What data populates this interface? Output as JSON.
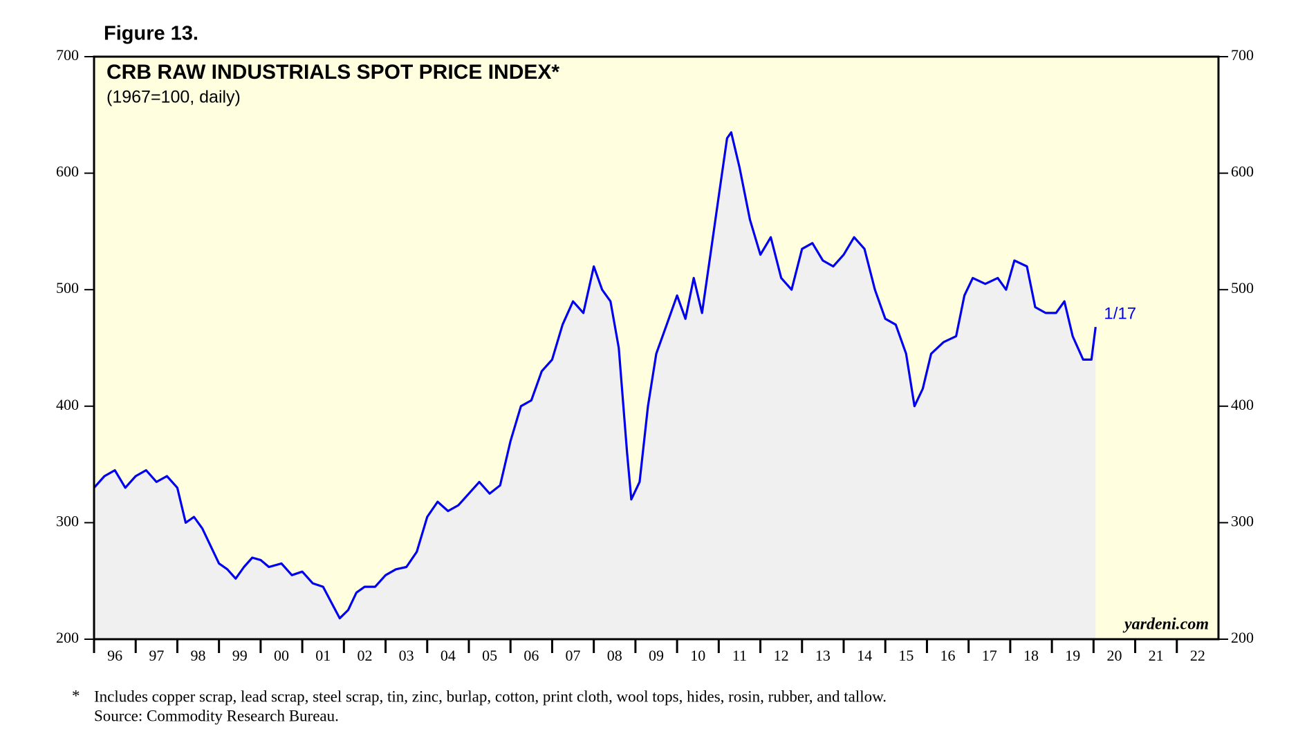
{
  "chart_data": {
    "type": "line",
    "figure_label": "Figure 13.",
    "title": "CRB RAW INDUSTRIALS SPOT PRICE INDEX*",
    "subtitle": "(1967=100, daily)",
    "annotation": "1/17",
    "watermark": "yardeni.com",
    "footnote_marker": "*",
    "footnote": "Includes copper scrap, lead scrap, steel scrap, tin, zinc, burlap, cotton, print cloth, wool tops, hides, rosin, rubber, and tallow.",
    "source": "Source: Commodity Research Bureau.",
    "xlim": [
      1996,
      2023
    ],
    "xticks": [
      {
        "value": 1996.5,
        "label": "96"
      },
      {
        "value": 1997.5,
        "label": "97"
      },
      {
        "value": 1998.5,
        "label": "98"
      },
      {
        "value": 1999.5,
        "label": "99"
      },
      {
        "value": 2000.5,
        "label": "00"
      },
      {
        "value": 2001.5,
        "label": "01"
      },
      {
        "value": 2002.5,
        "label": "02"
      },
      {
        "value": 2003.5,
        "label": "03"
      },
      {
        "value": 2004.5,
        "label": "04"
      },
      {
        "value": 2005.5,
        "label": "05"
      },
      {
        "value": 2006.5,
        "label": "06"
      },
      {
        "value": 2007.5,
        "label": "07"
      },
      {
        "value": 2008.5,
        "label": "08"
      },
      {
        "value": 2009.5,
        "label": "09"
      },
      {
        "value": 2010.5,
        "label": "10"
      },
      {
        "value": 2011.5,
        "label": "11"
      },
      {
        "value": 2012.5,
        "label": "12"
      },
      {
        "value": 2013.5,
        "label": "13"
      },
      {
        "value": 2014.5,
        "label": "14"
      },
      {
        "value": 2015.5,
        "label": "15"
      },
      {
        "value": 2016.5,
        "label": "16"
      },
      {
        "value": 2017.5,
        "label": "17"
      },
      {
        "value": 2018.5,
        "label": "18"
      },
      {
        "value": 2019.5,
        "label": "19"
      },
      {
        "value": 2020.5,
        "label": "20"
      },
      {
        "value": 2021.5,
        "label": "21"
      },
      {
        "value": 2022.5,
        "label": "22"
      }
    ],
    "ylim": [
      200,
      700
    ],
    "yticks": [
      200,
      300,
      400,
      500,
      600,
      700
    ],
    "y2lim": [
      200,
      700
    ],
    "y2ticks": [
      200,
      300,
      400,
      500,
      600,
      700
    ],
    "plot_background": "#ffffe0",
    "area_color": "#f0f0f0",
    "series": [
      {
        "color": "#0000ee",
        "x": [
          1996.0,
          1996.25,
          1996.5,
          1996.75,
          1997.0,
          1997.25,
          1997.5,
          1997.75,
          1998.0,
          1998.2,
          1998.4,
          1998.6,
          1998.8,
          1999.0,
          1999.2,
          1999.4,
          1999.6,
          1999.8,
          2000.0,
          2000.2,
          2000.5,
          2000.75,
          2001.0,
          2001.25,
          2001.5,
          2001.75,
          2001.9,
          2002.1,
          2002.3,
          2002.5,
          2002.75,
          2003.0,
          2003.25,
          2003.5,
          2003.75,
          2004.0,
          2004.25,
          2004.5,
          2004.75,
          2005.0,
          2005.25,
          2005.5,
          2005.75,
          2006.0,
          2006.25,
          2006.5,
          2006.75,
          2007.0,
          2007.25,
          2007.5,
          2007.75,
          2008.0,
          2008.2,
          2008.4,
          2008.6,
          2008.8,
          2008.9,
          2009.1,
          2009.3,
          2009.5,
          2009.75,
          2010.0,
          2010.2,
          2010.4,
          2010.6,
          2010.8,
          2011.0,
          2011.2,
          2011.3,
          2011.5,
          2011.75,
          2012.0,
          2012.25,
          2012.5,
          2012.75,
          2013.0,
          2013.25,
          2013.5,
          2013.75,
          2014.0,
          2014.25,
          2014.5,
          2014.75,
          2015.0,
          2015.25,
          2015.5,
          2015.7,
          2015.9,
          2016.1,
          2016.4,
          2016.7,
          2016.9,
          2017.1,
          2017.4,
          2017.7,
          2017.9,
          2018.1,
          2018.4,
          2018.6,
          2018.85,
          2019.1,
          2019.3,
          2019.5,
          2019.75,
          2019.95,
          2020.05
        ],
        "values": [
          330,
          340,
          345,
          330,
          340,
          345,
          335,
          340,
          330,
          300,
          305,
          295,
          280,
          265,
          260,
          252,
          262,
          270,
          268,
          262,
          265,
          255,
          258,
          248,
          245,
          228,
          218,
          225,
          240,
          245,
          245,
          255,
          260,
          262,
          275,
          305,
          318,
          310,
          315,
          325,
          335,
          325,
          332,
          370,
          400,
          405,
          430,
          440,
          470,
          490,
          480,
          520,
          500,
          490,
          450,
          360,
          320,
          335,
          400,
          445,
          470,
          495,
          475,
          510,
          480,
          530,
          580,
          630,
          635,
          605,
          560,
          530,
          545,
          510,
          500,
          535,
          540,
          525,
          520,
          530,
          545,
          535,
          500,
          475,
          470,
          445,
          400,
          415,
          445,
          455,
          460,
          495,
          510,
          505,
          510,
          500,
          525,
          520,
          485,
          480,
          480,
          490,
          460,
          440,
          440,
          468
        ]
      }
    ]
  }
}
